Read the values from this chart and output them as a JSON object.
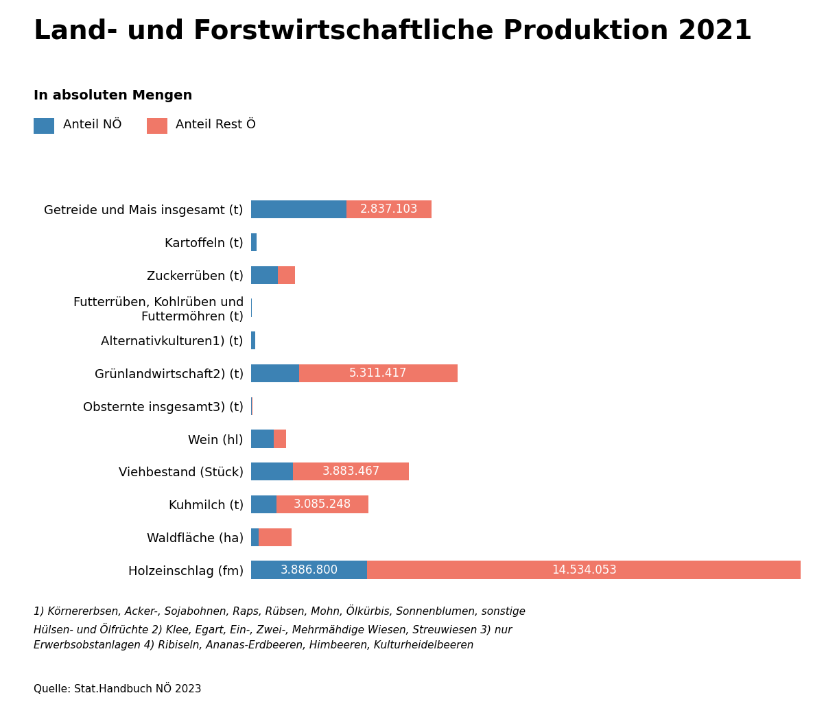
{
  "title": "Land- und Forstwirtschaftliche Produktion 2021",
  "subtitle": "In absoluten Mengen",
  "legend_no": "Anteil NÖ",
  "legend_rest": "Anteil Rest Ö",
  "color_no": "#3C82B4",
  "color_rest": "#F07868",
  "background_color": "#FFFFFF",
  "categories": [
    "Getreide und Mais insgesamt (t)",
    "Kartoffeln (t)",
    "Zuckerrüben (t)",
    "Futterrüben, Kohlrüben und\nFuttermöhren (t)",
    "Alternativkulturen1) (t)",
    "Grünlandwirtschaft2) (t)",
    "Obsternte insgesamt3) (t)",
    "Wein (hl)",
    "Viehbestand (Stück)",
    "Kuhmilch (t)",
    "Waldfläche (ha)",
    "Holzeinschlag (fm)"
  ],
  "values_no": [
    3200000,
    180000,
    900000,
    15000,
    130000,
    1600000,
    30000,
    750000,
    1400000,
    850000,
    250000,
    3886800
  ],
  "values_rest": [
    2837103,
    0,
    580000,
    8000,
    0,
    5311417,
    18000,
    420000,
    3883467,
    3085248,
    1100000,
    14534053
  ],
  "labels_no": [
    "",
    "",
    "",
    "",
    "",
    "",
    "",
    "",
    "",
    "",
    "",
    "3.886.800"
  ],
  "labels_rest": [
    "2.837.103",
    "",
    "",
    "",
    "",
    "5.311.417",
    "",
    "",
    "3.883.467",
    "3.085.248",
    "",
    "14.534.053"
  ],
  "footnote": "1) Körnererbsen, Acker-, Sojabohnen, Raps, Rübsen, Mohn, Ölkürbis, Sonnenblumen, sonstige\nHülsen- und Ölfrüchte 2) Klee, Egart, Ein-, Zwei-, Mehrmähdige Wiesen, Streuwiesen 3) nur\nErwerbsobstanlagen 4) Ribiseln, Ananas-Erdbeeren, Himbeeren, Kulturheidelbeeren",
  "source": "Quelle: Stat.Handbuch NÖ 2023",
  "title_fontsize": 28,
  "subtitle_fontsize": 14,
  "legend_fontsize": 13,
  "label_fontsize": 13,
  "bar_label_fontsize": 12,
  "footnote_fontsize": 11,
  "source_fontsize": 11
}
